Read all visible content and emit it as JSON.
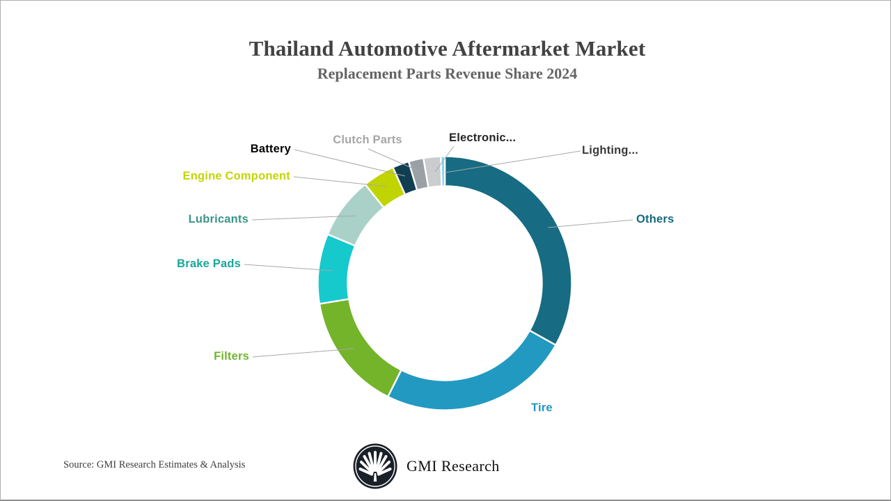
{
  "slide": {
    "title": "Thailand Automotive Aftermarket Market",
    "subtitle": "Replacement Parts Revenue Share 2024",
    "source_note": "Source: GMI Research Estimates & Analysis",
    "brand_name": "GMI Research"
  },
  "chart_data": {
    "type": "pie",
    "donut": true,
    "title": "Thailand Automotive Aftermarket Market",
    "subtitle": "Replacement Parts Revenue Share 2024",
    "start_angle_deg": 0,
    "direction": "clockwise",
    "legend_position": "callout-labels-around-donut",
    "values_are_estimated_from_arc_angles": true,
    "segments": [
      {
        "label": "Others",
        "value_pct": 33.1,
        "color": "#176b82",
        "label_color": "#156a80"
      },
      {
        "label": "Tire",
        "value_pct": 24.3,
        "color": "#2299c0",
        "label_color": "#2197c1"
      },
      {
        "label": "Filters",
        "value_pct": 15.0,
        "color": "#73b42a",
        "label_color": "#70b52d"
      },
      {
        "label": "Brake Pads",
        "value_pct": 8.9,
        "color": "#16c9cd",
        "label_color": "#17a79b"
      },
      {
        "label": "Lubricants",
        "value_pct": 7.9,
        "color": "#a9d1c8",
        "label_color": "#3c9489"
      },
      {
        "label": "Engine Component",
        "value_pct": 4.1,
        "color": "#c0d400",
        "label_color": "#c3d600"
      },
      {
        "label": "Battery",
        "value_pct": 2.1,
        "color": "#113f51",
        "label_color": "#000000"
      },
      {
        "label": "Clutch Parts",
        "value_pct": 1.9,
        "color": "#9aa0a5",
        "label_color": "#a6a6a6"
      },
      {
        "label": "Electronic...",
        "value_pct": 2.2,
        "color": "#cbccce",
        "label_color": "#262626"
      },
      {
        "label": "Lighting...",
        "value_pct": 0.5,
        "color": "#7fd0f0",
        "label_color": "#3a3a3a"
      }
    ],
    "leader_line_color": "#a8a8a8",
    "logo_colors": {
      "disc": "#1a2028",
      "fan": "#ffffff"
    }
  }
}
